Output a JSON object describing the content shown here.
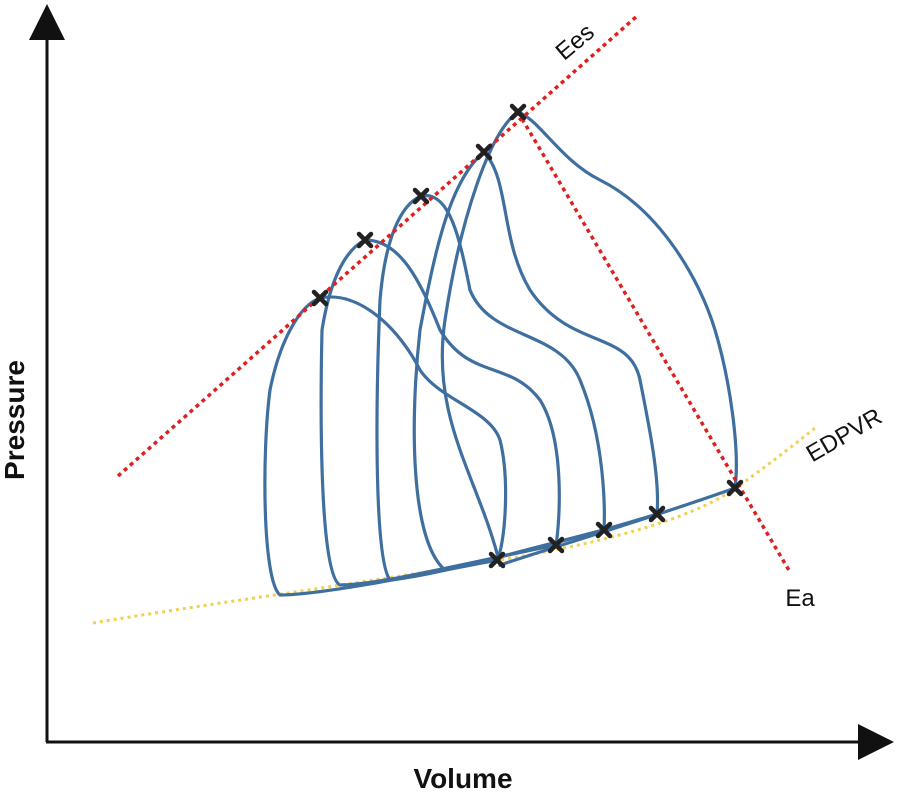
{
  "labels": {
    "y_axis": "Pressure",
    "x_axis": "Volume",
    "ees": "Ees",
    "ea": "Ea",
    "edpvr": "EDPVR"
  }
}
